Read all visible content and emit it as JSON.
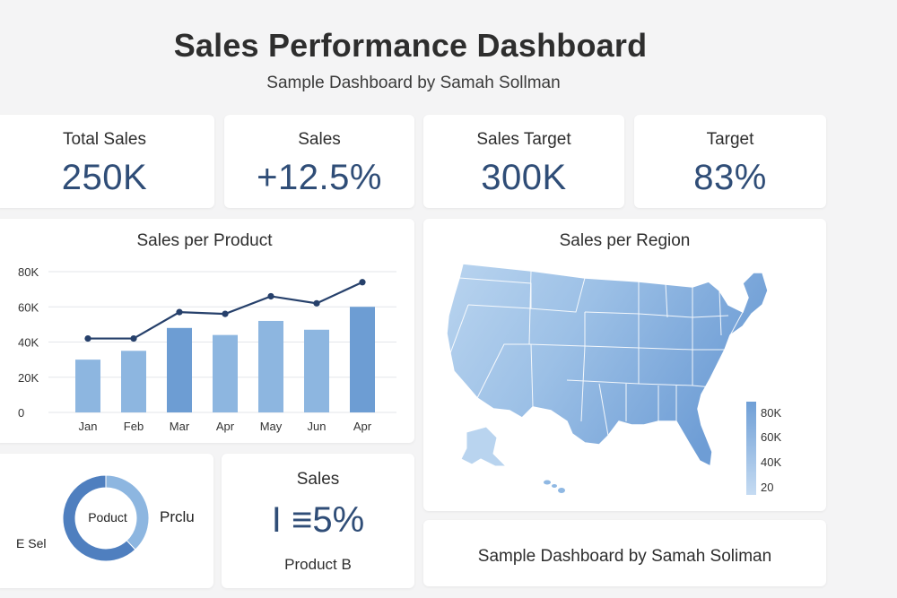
{
  "header": {
    "title": "Sales Performance Dashboard",
    "subtitle": "Sample Dashboard by Samah Sollman"
  },
  "kpis": [
    {
      "label": "Total Sales",
      "value": "250K"
    },
    {
      "label": "Sales",
      "value": "+12.5%"
    },
    {
      "label": "Sales Target",
      "value": "300K"
    },
    {
      "label": "Target",
      "value": "83%"
    }
  ],
  "colors": {
    "bar_dark": "#6d9dd3",
    "bar_light": "#8db6e0",
    "line": "#26406b",
    "kpi_text": "#2f4d77",
    "map_light": "#b8d3ee",
    "map_mid": "#8cb6e2",
    "map_dark": "#6a9bd4"
  },
  "chart_data": [
    {
      "type": "bar",
      "title": "Sales per Product",
      "categories": [
        "Jan",
        "Feb",
        "Mar",
        "Apr",
        "May",
        "Jun",
        "Apr"
      ],
      "yticks": [
        "0",
        "20K",
        "40K",
        "60K",
        "80K"
      ],
      "ylim": [
        0,
        80000
      ],
      "grid": true,
      "series": [
        {
          "type": "bar",
          "values": [
            30000,
            35000,
            48000,
            44000,
            52000,
            47000,
            60000
          ]
        },
        {
          "type": "line",
          "values": [
            42000,
            42000,
            57000,
            56000,
            66000,
            62000,
            74000
          ]
        }
      ]
    },
    {
      "type": "heatmap",
      "title": "Sales per Region",
      "map": "United States",
      "legend_ticks": [
        "80K",
        "60K",
        "40K",
        "20"
      ],
      "legend_position": "bottom-right"
    },
    {
      "type": "pie",
      "style": "donut",
      "center_label": "Poduct",
      "side_labels": [
        "Prclu",
        "E Sel"
      ],
      "series": [
        {
          "values": [
            38,
            62
          ]
        }
      ]
    }
  ],
  "small_sales": {
    "title": "Sales",
    "value": "I ≡5%",
    "caption": "Product B"
  },
  "footer": {
    "text": "Sample Dashboard by Samah Soliman"
  }
}
